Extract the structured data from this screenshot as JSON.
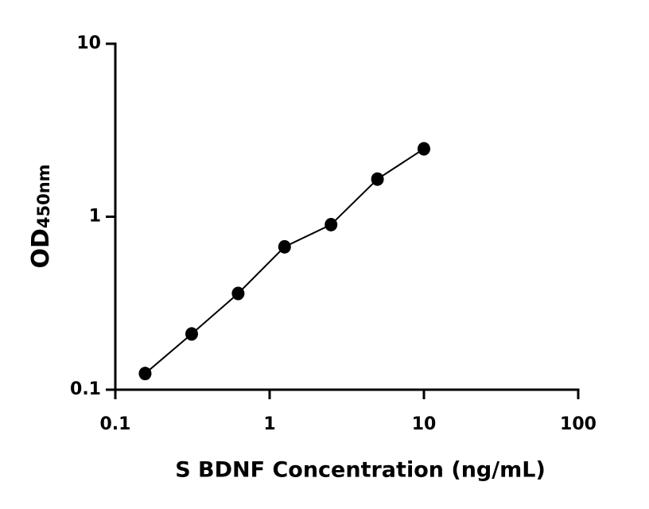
{
  "chart_data": {
    "type": "scatter",
    "x_label": "S BDNF Concentration (ng/mL)",
    "y_label": "OD",
    "y_label_subscript": "450nm",
    "x": [
      0.156,
      0.3125,
      0.625,
      1.25,
      2.5,
      5,
      10
    ],
    "values": [
      0.124,
      0.21,
      0.36,
      0.67,
      0.9,
      1.65,
      2.47
    ],
    "color": "#000000",
    "xscale": "log",
    "yscale": "log",
    "xlim": [
      0.1,
      100
    ],
    "ylim": [
      0.1,
      10
    ],
    "xticks": [
      0.1,
      1,
      10,
      100
    ],
    "yticks": [
      0.1,
      1,
      10
    ]
  }
}
